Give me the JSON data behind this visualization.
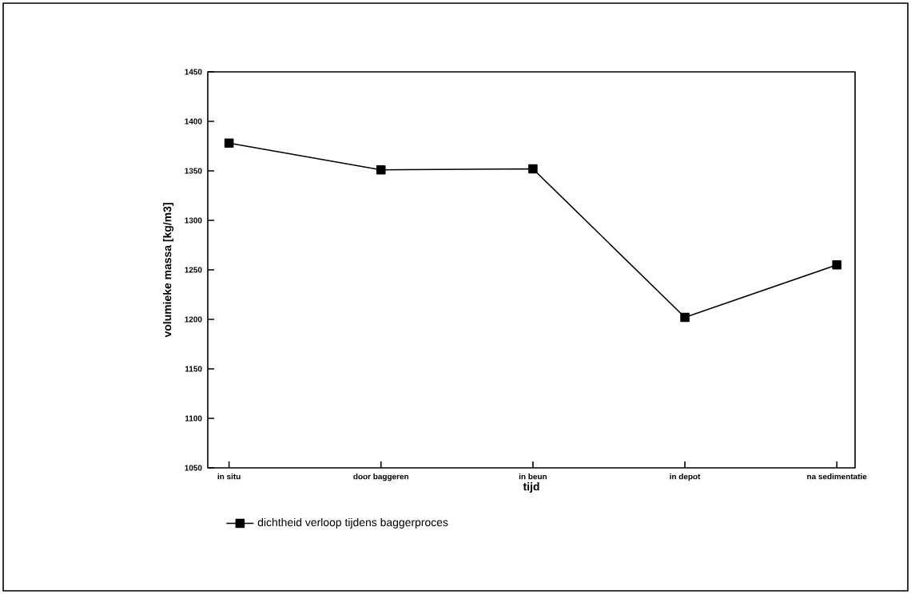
{
  "chart_data": {
    "type": "line",
    "xlabel": "tijd",
    "ylabel": "volumieke massa [kg/m3]",
    "categories": [
      "in situ",
      "door baggeren",
      "in beun",
      "in depot",
      "na sedimentatie"
    ],
    "series": [
      {
        "name": "dichtheid verloop tijdens baggerproces",
        "color": "#000000",
        "values": [
          1378,
          1351,
          1352,
          1202,
          1255
        ]
      }
    ],
    "ylim": [
      1050,
      1450
    ],
    "yticks": [
      1050,
      1100,
      1150,
      1200,
      1250,
      1300,
      1350,
      1400,
      1450
    ],
    "grid": false,
    "legend": "bottom left",
    "marker": "square",
    "line_style": "solid"
  }
}
